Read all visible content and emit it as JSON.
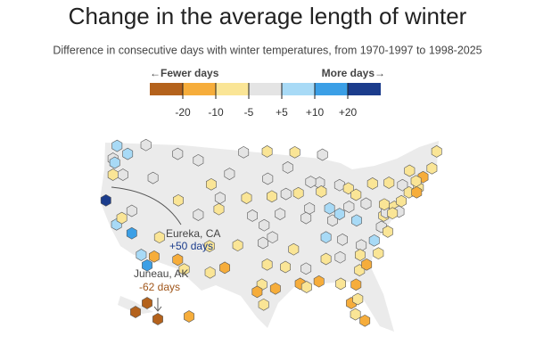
{
  "chart_data": {
    "type": "hexmap",
    "title": "Change in the average length of winter",
    "subtitle": "Difference in consecutive days with winter temperatures, from 1970-1997 to 1998-2025",
    "legend": {
      "left_label": "←Fewer days",
      "right_label": "More days→",
      "colors": [
        "#b4621c",
        "#f6ad3b",
        "#fae596",
        "#e4e4e4",
        "#a8daf6",
        "#3b9fe6",
        "#1b3c8c"
      ],
      "ticks": [
        -20,
        -10,
        -5,
        {
          "value": 5,
          "label": "+5"
        },
        {
          "value": 10,
          "label": "+10"
        },
        {
          "value": 20,
          "label": "+20"
        }
      ]
    },
    "stations": {
      "lon": [
        -122.3,
        -123,
        -120.5,
        -117.4,
        -122.7,
        -123,
        -121.3,
        -124.2,
        -122.4,
        -121.5,
        -119.8,
        -118.2,
        -117.2,
        -116,
        -119.8,
        -115.1,
        -112,
        -110.9,
        -111.9,
        -116.2,
        -112,
        -108.5,
        -104.8,
        -106.3,
        -105,
        -108.5,
        -106.6,
        -104,
        -106.5,
        -100.8,
        -96.8,
        -103.2,
        -96.7,
        -100.3,
        -96,
        -97.3,
        -99.3,
        -101.8,
        -97.5,
        -95.9,
        -97.7,
        -96.8,
        -95.4,
        -98.5,
        -97.4,
        -93.3,
        -92.1,
        -93.6,
        -91.5,
        -94.6,
        -90.2,
        -92.3,
        -90.2,
        -91.2,
        -90.1,
        -93.7,
        -87.9,
        -89.4,
        -87.6,
        -89.6,
        -86.2,
        -85.7,
        -84.5,
        -83,
        -87.4,
        -84.5,
        -82.9,
        -81.7,
        -86.8,
        -84,
        -86.8,
        -88,
        -84.4,
        -81.1,
        -84.3,
        -81.7,
        -82.5,
        -81.4,
        -80.2,
        -81.8,
        -80.8,
        -78.6,
        -77.9,
        -81,
        -79.9,
        -77.4,
        -76.3,
        -81.6,
        -77,
        -76.6,
        -75.2,
        -80,
        -76.9,
        -74,
        -73.8,
        -76.1,
        -78.9,
        -72.7,
        -71.1,
        -71.4,
        -72.6,
        -70.3,
        -68.8,
        -68,
        -71.5,
        -74.4,
        -75.5
      ],
      "lat": [
        47.6,
        46,
        46.6,
        47.7,
        45.5,
        44,
        44,
        40.8,
        37.8,
        38.6,
        36.7,
        34,
        32.7,
        33.8,
        39.5,
        36.2,
        33.4,
        32.2,
        40.8,
        43.6,
        46.6,
        45.8,
        41.1,
        42.8,
        39.7,
        39,
        35.1,
        32.4,
        31.8,
        46.8,
        46.9,
        44.1,
        43.5,
        41.1,
        41.3,
        37.7,
        38.9,
        35.2,
        35.5,
        36.2,
        30.3,
        32.8,
        29.8,
        29.4,
        27.8,
        44.9,
        46.8,
        41.6,
        41.7,
        39.1,
        38.6,
        34.7,
        32.3,
        30.4,
        30,
        32.5,
        43,
        43.1,
        41.9,
        39.8,
        39.8,
        38.3,
        42.7,
        42.3,
        46.5,
        39.1,
        40,
        41.5,
        36.2,
        35.9,
        33.5,
        30.7,
        33.7,
        32.1,
        30.4,
        30.3,
        28,
        28.5,
        25.8,
        26.6,
        35.2,
        35.8,
        34.2,
        34,
        32.8,
        37.5,
        36.9,
        38.3,
        38.9,
        39.3,
        40,
        40.4,
        40.3,
        40.7,
        42.7,
        43,
        42.9,
        41.8,
        42.4,
        41.8,
        44.5,
        43.7,
        44.8,
        46.9,
        43.2,
        39.4,
        39.2
      ],
      "values": [
        7,
        0,
        7,
        0,
        7,
        -7,
        0,
        50,
        7,
        -7,
        15,
        7,
        15,
        -15,
        0,
        -7,
        -15,
        -7,
        -7,
        0,
        0,
        0,
        0,
        -7,
        -7,
        0,
        -7,
        -15,
        -7,
        0,
        -7,
        0,
        0,
        -7,
        -7,
        0,
        0,
        -7,
        0,
        0,
        -7,
        -7,
        -15,
        -15,
        -7,
        0,
        -7,
        0,
        -7,
        0,
        0,
        -7,
        0,
        -15,
        -7,
        -7,
        0,
        0,
        -7,
        0,
        7,
        0,
        0,
        -7,
        0,
        7,
        0,
        -7,
        7,
        0,
        -7,
        -15,
        0,
        -7,
        -7,
        -15,
        -15,
        -7,
        -15,
        -7,
        0,
        7,
        -7,
        -7,
        -15,
        0,
        -7,
        7,
        -7,
        0,
        -7,
        0,
        -7,
        -7,
        0,
        -7,
        -7,
        -7,
        -7,
        -15,
        -7,
        -15,
        -7,
        -7,
        -7,
        0,
        -7
      ]
    },
    "inset_values": [
      -25,
      -25,
      -62,
      -15
    ],
    "annotations": [
      {
        "place": "Eureka, CA",
        "change": "+50 days"
      },
      {
        "place": "Juneau, AK",
        "change": "-62 days"
      }
    ]
  }
}
